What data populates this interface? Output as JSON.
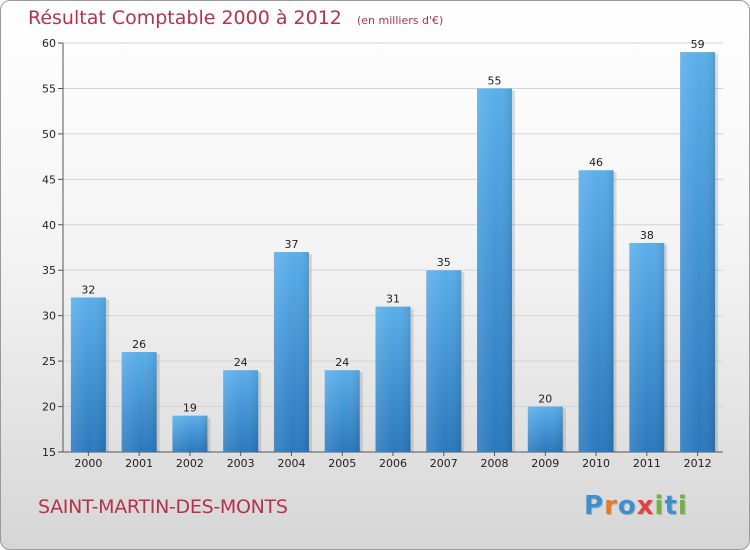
{
  "chart_data": {
    "type": "bar",
    "title": "Résultat Comptable 2000 à 2012",
    "unit_note": "(en milliers d'€)",
    "categories": [
      "2000",
      "2001",
      "2002",
      "2003",
      "2004",
      "2005",
      "2006",
      "2007",
      "2008",
      "2009",
      "2010",
      "2011",
      "2012"
    ],
    "values": [
      32,
      26,
      19,
      24,
      37,
      24,
      31,
      35,
      55,
      20,
      46,
      38,
      59
    ],
    "yticks": [
      15,
      20,
      25,
      30,
      35,
      40,
      45,
      50,
      55,
      60
    ],
    "ylim": [
      15,
      60
    ],
    "xlabel": "",
    "ylabel": "",
    "grid": true,
    "bar_color": "#3a8fd3",
    "bar_color_light": "#5aaeea",
    "bar_color_dark": "#2a78bd"
  },
  "footer": {
    "commune": "SAINT-MARTIN-DES-MONTS"
  },
  "brand": {
    "letters": [
      {
        "char": "P",
        "color": "#3d8fd0"
      },
      {
        "char": "r",
        "color": "#e8782a"
      },
      {
        "char": "o",
        "color": "#3d8fd0"
      },
      {
        "char": "x",
        "color": "#e0433f"
      },
      {
        "char": "i",
        "color": "#6db33f"
      },
      {
        "char": "t",
        "color": "#3d8fd0"
      },
      {
        "char": "i",
        "color": "#6db33f"
      }
    ]
  }
}
